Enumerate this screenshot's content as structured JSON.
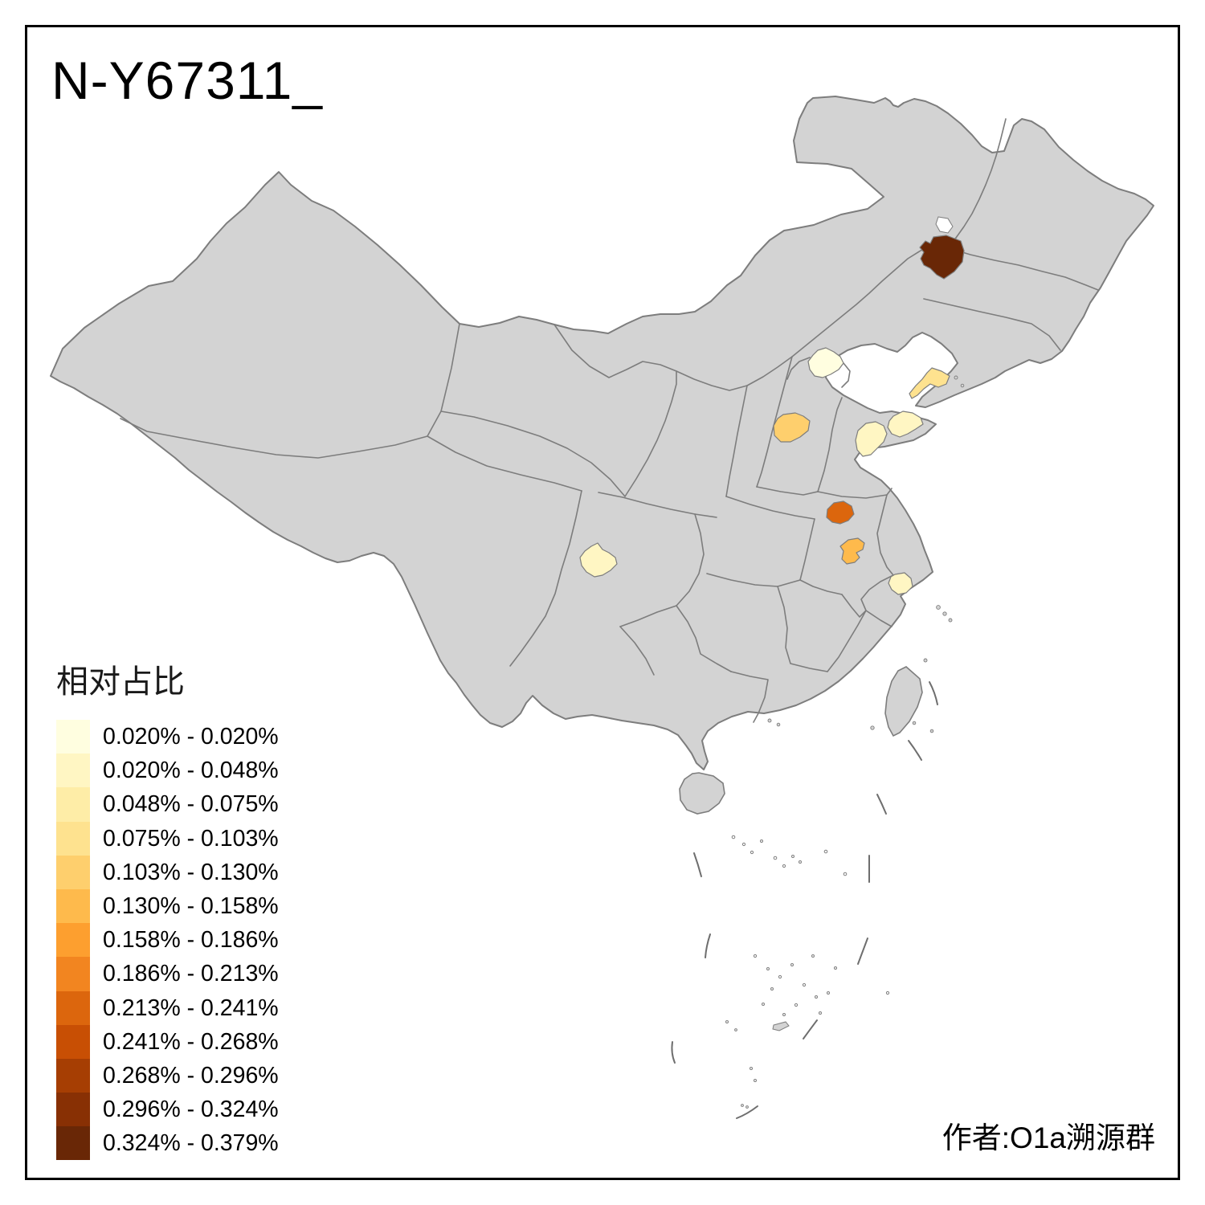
{
  "title": "N-Y67311_",
  "attribution": "作者:O1a溯源群",
  "legend": {
    "title": "相对占比",
    "items": [
      {
        "range": "0.020% - 0.020%",
        "color": "#FFFEE0"
      },
      {
        "range": "0.020% - 0.048%",
        "color": "#FFF6C3"
      },
      {
        "range": "0.048% - 0.075%",
        "color": "#FEEDA7"
      },
      {
        "range": "0.075% - 0.103%",
        "color": "#FEE28F"
      },
      {
        "range": "0.103% - 0.130%",
        "color": "#FECF6D"
      },
      {
        "range": "0.130% - 0.158%",
        "color": "#FEBA4C"
      },
      {
        "range": "0.158% - 0.186%",
        "color": "#FD9F2F"
      },
      {
        "range": "0.186% - 0.213%",
        "color": "#F28520"
      },
      {
        "range": "0.213% - 0.241%",
        "color": "#DC660D"
      },
      {
        "range": "0.241% - 0.268%",
        "color": "#C84F04"
      },
      {
        "range": "0.268% - 0.296%",
        "color": "#A63E03"
      },
      {
        "range": "0.296% - 0.324%",
        "color": "#883004"
      },
      {
        "range": "0.324% - 0.379%",
        "color": "#692706"
      }
    ]
  },
  "map": {
    "land_color": "#D3D3D3",
    "border_color": "#7D7D7D",
    "sea_color": "#FFFFFF",
    "regions": [
      {
        "id": "r1",
        "color": "#692706",
        "range": "0.324% - 0.379%"
      },
      {
        "id": "r2",
        "color": "#FFFEE0",
        "range": "0.020% - 0.020%"
      },
      {
        "id": "r3",
        "color": "#FEE28F",
        "range": "0.075% - 0.103%"
      },
      {
        "id": "r4",
        "color": "#FECF6D",
        "range": "0.103% - 0.130%"
      },
      {
        "id": "r5",
        "color": "#FFF6C3",
        "range": "0.020% - 0.048%"
      },
      {
        "id": "r6",
        "color": "#FFF6C3",
        "range": "0.020% - 0.048%"
      },
      {
        "id": "r7",
        "color": "#DC660D",
        "range": "0.213% - 0.241%"
      },
      {
        "id": "r8",
        "color": "#FEBA4C",
        "range": "0.130% - 0.158%"
      },
      {
        "id": "r9",
        "color": "#FFF6C3",
        "range": "0.020% - 0.048%"
      },
      {
        "id": "r10",
        "color": "#FFF6C3",
        "range": "0.020% - 0.048%"
      }
    ]
  }
}
